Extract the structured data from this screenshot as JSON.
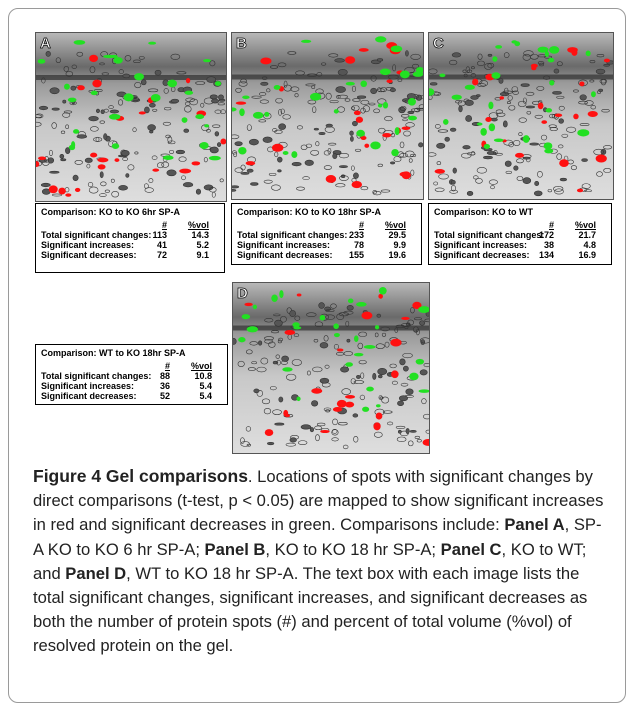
{
  "panels": [
    {
      "label": "A",
      "table": {
        "title": "Comparison:  KO to KO 6hr SP-A",
        "header": [
          "#",
          "%vol"
        ],
        "rows": [
          [
            "Total significant changes:",
            "113",
            "14.3"
          ],
          [
            "Significant increases:",
            "41",
            "5.2"
          ],
          [
            "Significant decreases:",
            "72",
            "9.1"
          ]
        ]
      }
    },
    {
      "label": "B",
      "table": {
        "title": "Comparison:  KO to KO 18hr SP-A",
        "header": [
          "#",
          "%vol"
        ],
        "rows": [
          [
            "Total significant changes:",
            "233",
            "29.5"
          ],
          [
            "Significant increases:",
            "78",
            "9.9"
          ],
          [
            "Significant decreases:",
            "155",
            "19.6"
          ]
        ]
      }
    },
    {
      "label": "C",
      "table": {
        "title": "Comparison:  KO to WT",
        "header": [
          "#",
          "%vol"
        ],
        "rows": [
          [
            "Total significant changes:",
            "172",
            "21.7"
          ],
          [
            "Significant increases:",
            "38",
            "4.8"
          ],
          [
            "Significant decreases:",
            "134",
            "16.9"
          ]
        ]
      }
    },
    {
      "label": "D",
      "table": {
        "title": "Comparison:  WT to KO 18hr SP-A",
        "header": [
          "#",
          "%vol"
        ],
        "rows": [
          [
            "Total significant changes:",
            "88",
            "10.8"
          ],
          [
            "Significant increases:",
            "36",
            "5.4"
          ],
          [
            "Significant decreases:",
            "52",
            "5.4"
          ]
        ]
      }
    }
  ],
  "caption": {
    "parts": [
      {
        "text": "Figure 4 Gel comparisons",
        "style": "title"
      },
      {
        "text": ". Locations of spots with significant changes by direct comparisons (t-test, p < 0.05) are mapped to show significant increases in red and significant decreases in green. Comparisons include: ",
        "style": "normal"
      },
      {
        "text": "Panel A",
        "style": "bold"
      },
      {
        "text": ", SP-A KO to KO 6 hr SP-A; ",
        "style": "normal"
      },
      {
        "text": "Panel B",
        "style": "bold"
      },
      {
        "text": ", KO to KO 18 hr SP-A; ",
        "style": "normal"
      },
      {
        "text": "Panel C",
        "style": "bold"
      },
      {
        "text": ", KO to WT; and ",
        "style": "normal"
      },
      {
        "text": "Panel D",
        "style": "bold"
      },
      {
        "text": ", WT to KO 18 hr SP-A. The text box with each image lists the total significant changes, significant increases, and significant decreases as both the number of protein spots (#) and percent of total volume (%vol) of resolved protein on the gel.",
        "style": "normal"
      }
    ]
  }
}
